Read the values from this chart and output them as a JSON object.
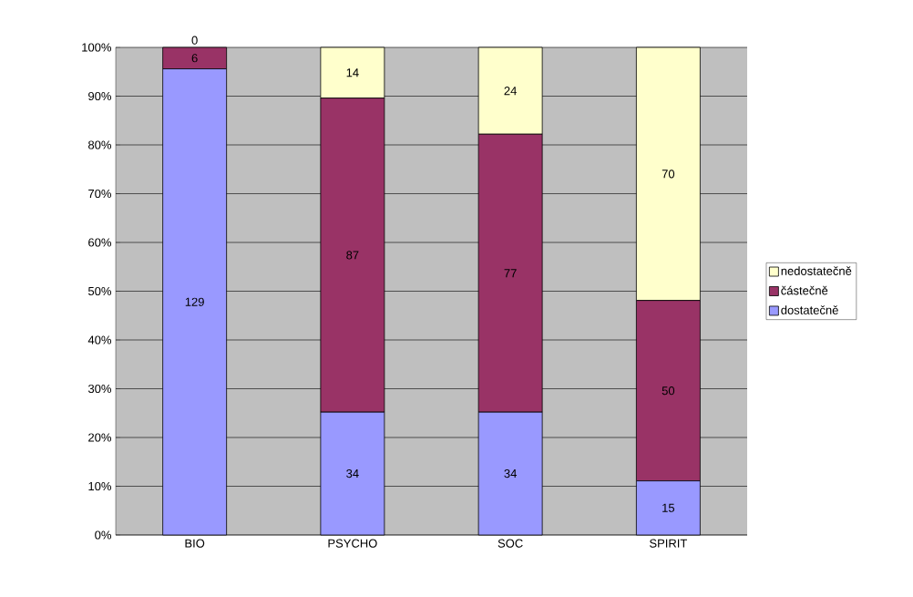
{
  "chart_data": {
    "type": "bar",
    "stacked": true,
    "categories": [
      "BIO",
      "PSYCHO",
      "SOC",
      "SPIRIT"
    ],
    "series": [
      {
        "name": "dostatečně",
        "color": "#9999ff",
        "values": [
          95.6,
          25.2,
          25.2,
          11.1
        ]
      },
      {
        "name": "částečně",
        "color": "#993366",
        "values": [
          4.4,
          64.4,
          57.0,
          37.0
        ]
      },
      {
        "name": "nedostatečně",
        "color": "#ffffcc",
        "values": [
          0,
          10.4,
          17.8,
          51.9
        ]
      }
    ],
    "annotations": [
      "129",
      "6",
      "0",
      "34",
      "87",
      "14",
      "34",
      "77",
      "24",
      "15",
      "50",
      "70"
    ],
    "ylim": [
      0,
      100
    ],
    "yticks": [
      {
        "value": 0,
        "label": "0%"
      },
      {
        "value": 10,
        "label": "10%"
      },
      {
        "value": 20,
        "label": "20%"
      },
      {
        "value": 30,
        "label": "30%"
      },
      {
        "value": 40,
        "label": "40%"
      },
      {
        "value": 50,
        "label": "50%"
      },
      {
        "value": 60,
        "label": "60%"
      },
      {
        "value": 70,
        "label": "70%"
      },
      {
        "value": 80,
        "label": "80%"
      },
      {
        "value": 90,
        "label": "90%"
      },
      {
        "value": 100,
        "label": "100%"
      }
    ],
    "grid": "y",
    "legend": "right"
  }
}
